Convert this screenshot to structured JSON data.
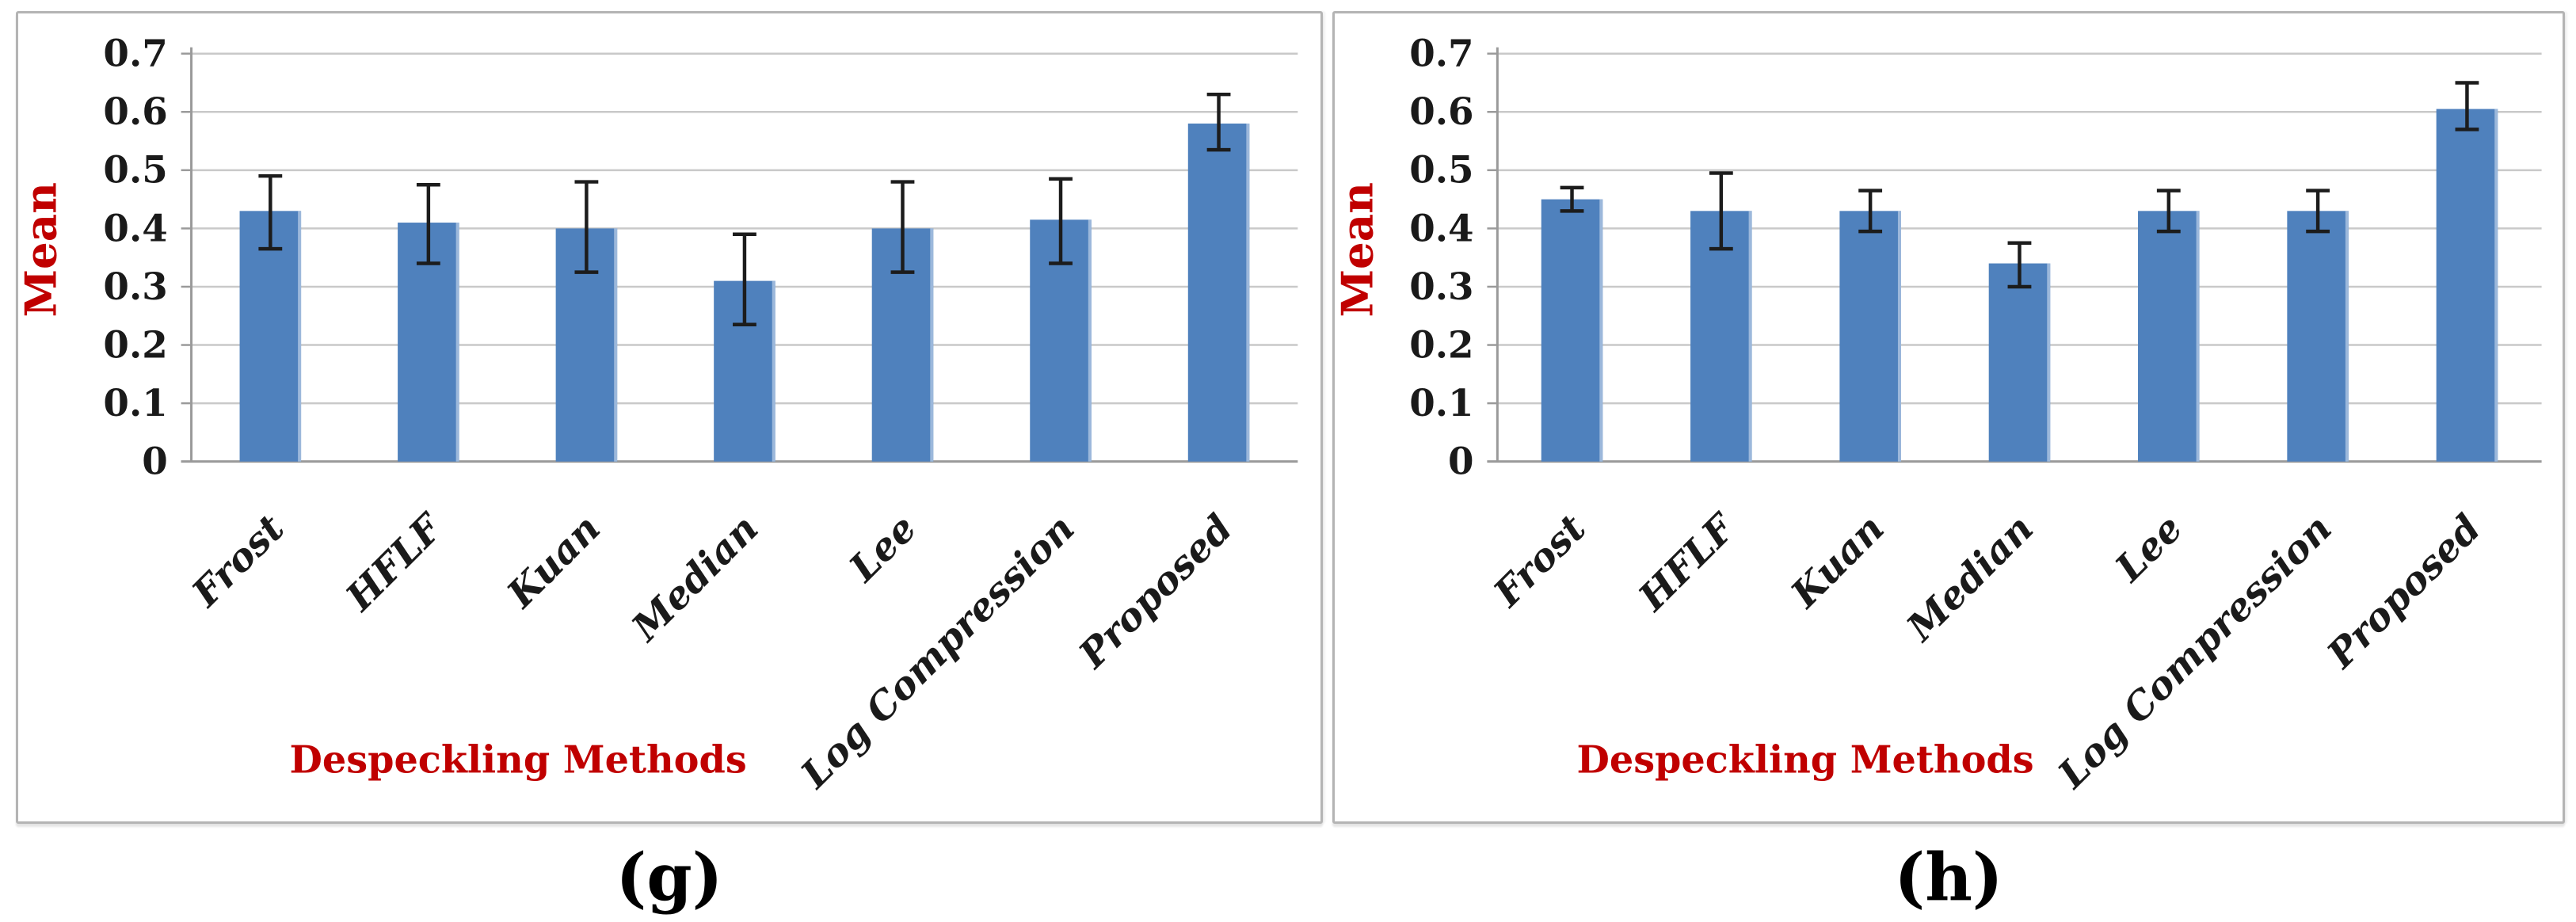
{
  "figure": {
    "captions": [
      "(g)",
      "(h)"
    ]
  },
  "chart_data": [
    {
      "type": "bar",
      "panel": "g",
      "title": "",
      "ylabel": "Mean",
      "xlabel": "Despeckling Methods",
      "categories": [
        "Frost",
        "HFLF",
        "Kuan",
        "Median",
        "Lee",
        "Log Compression",
        "Proposed"
      ],
      "values": [
        0.43,
        0.41,
        0.4,
        0.31,
        0.4,
        0.415,
        0.58
      ],
      "error_low": [
        0.365,
        0.34,
        0.325,
        0.235,
        0.325,
        0.34,
        0.535
      ],
      "error_high": [
        0.49,
        0.475,
        0.48,
        0.39,
        0.48,
        0.485,
        0.63
      ],
      "ylim": [
        0,
        0.7
      ],
      "ytick_step": 0.1,
      "ytick_labels": [
        "0",
        "0.1",
        "0.2",
        "0.3",
        "0.4",
        "0.5",
        "0.6",
        "0.7"
      ],
      "grid": true,
      "legend": null
    },
    {
      "type": "bar",
      "panel": "h",
      "title": "",
      "ylabel": "Mean",
      "xlabel": "Despeckling Methods",
      "categories": [
        "Frost",
        "HFLF",
        "Kuan",
        "Median",
        "Lee",
        "Log Compression",
        "Proposed"
      ],
      "values": [
        0.45,
        0.43,
        0.43,
        0.34,
        0.43,
        0.43,
        0.605
      ],
      "error_low": [
        0.43,
        0.365,
        0.395,
        0.3,
        0.395,
        0.395,
        0.57
      ],
      "error_high": [
        0.47,
        0.495,
        0.465,
        0.375,
        0.465,
        0.465,
        0.65
      ],
      "ylim": [
        0,
        0.7
      ],
      "ytick_step": 0.1,
      "ytick_labels": [
        "0",
        "0.1",
        "0.2",
        "0.3",
        "0.4",
        "0.5",
        "0.6",
        "0.7"
      ],
      "grid": true,
      "legend": null
    }
  ],
  "colors": {
    "bar": "#4f81bd",
    "bar_edge": "#a9c2e1",
    "error_bar": "#1c1c1c",
    "grid_line": "#c9c9c9",
    "axis_line": "#9a9a9a",
    "axis_title": "#c00000",
    "tick_label": "#1a1a1a",
    "category_label": "#1a1a1a",
    "caption": "#000000",
    "panel_border": "#b4b4b4",
    "background": "#ffffff"
  }
}
